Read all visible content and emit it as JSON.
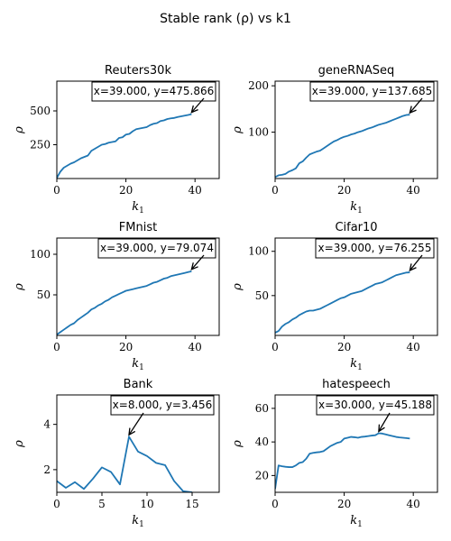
{
  "figure": {
    "title": "Stable rank (ρ) vs k1"
  },
  "chart_data": [
    {
      "type": "line",
      "title": "Reuters30k",
      "xlabel": "k1",
      "ylabel": "ρ",
      "xlim": [
        0,
        47
      ],
      "ylim": [
        0,
        720
      ],
      "xticks": [
        0,
        20,
        40
      ],
      "yticks": [
        250,
        500
      ],
      "x": [
        0,
        1,
        2,
        3,
        4,
        5,
        6,
        7,
        8,
        9,
        10,
        11,
        12,
        13,
        14,
        15,
        16,
        17,
        18,
        19,
        20,
        21,
        22,
        23,
        24,
        25,
        26,
        27,
        28,
        29,
        30,
        31,
        32,
        33,
        34,
        35,
        36,
        37,
        38,
        39
      ],
      "series": [
        {
          "values": [
            5,
            50,
            80,
            95,
            110,
            120,
            135,
            150,
            160,
            170,
            205,
            220,
            235,
            250,
            255,
            265,
            270,
            275,
            300,
            305,
            325,
            330,
            350,
            365,
            370,
            375,
            380,
            395,
            405,
            410,
            425,
            430,
            440,
            445,
            448,
            455,
            460,
            465,
            470,
            475.866
          ]
        }
      ],
      "annotation": {
        "text": "x=39.000, y=475.866",
        "x": 39,
        "y": 475.866
      },
      "color": "#1f77b4"
    },
    {
      "type": "line",
      "title": "geneRNASeq",
      "xlabel": "k1",
      "ylabel": "ρ",
      "xlim": [
        0,
        47
      ],
      "ylim": [
        0,
        210
      ],
      "xticks": [
        0,
        20,
        40
      ],
      "yticks": [
        100,
        200
      ],
      "x": [
        0,
        1,
        2,
        3,
        4,
        5,
        6,
        7,
        8,
        9,
        10,
        11,
        12,
        13,
        14,
        15,
        16,
        17,
        18,
        19,
        20,
        21,
        22,
        23,
        24,
        25,
        26,
        27,
        28,
        29,
        30,
        31,
        32,
        33,
        34,
        35,
        36,
        37,
        38,
        39
      ],
      "series": [
        {
          "values": [
            3,
            7,
            8,
            10,
            15,
            18,
            22,
            33,
            37,
            45,
            52,
            55,
            58,
            60,
            65,
            70,
            75,
            80,
            83,
            87,
            90,
            92,
            95,
            97,
            100,
            102,
            105,
            108,
            110,
            113,
            116,
            118,
            120,
            123,
            126,
            129,
            132,
            135,
            137,
            137.685
          ]
        }
      ],
      "annotation": {
        "text": "x=39.000, y=137.685",
        "x": 39,
        "y": 137.685
      },
      "color": "#1f77b4"
    },
    {
      "type": "line",
      "title": "FMnist",
      "xlabel": "k1",
      "ylabel": "ρ",
      "xlim": [
        0,
        47
      ],
      "ylim": [
        0,
        120
      ],
      "xticks": [
        0,
        20,
        40
      ],
      "yticks": [
        50,
        100
      ],
      "x": [
        0,
        1,
        2,
        3,
        4,
        5,
        6,
        7,
        8,
        9,
        10,
        11,
        12,
        13,
        14,
        15,
        16,
        17,
        18,
        19,
        20,
        21,
        22,
        23,
        24,
        25,
        26,
        27,
        28,
        29,
        30,
        31,
        32,
        33,
        34,
        35,
        36,
        37,
        38,
        39
      ],
      "series": [
        {
          "values": [
            1,
            4,
            7,
            10,
            13,
            15,
            19,
            22,
            25,
            28,
            32,
            34,
            37,
            39,
            42,
            44,
            47,
            49,
            51,
            53,
            55,
            56,
            57,
            58,
            59,
            60,
            61,
            63,
            65,
            66,
            68,
            70,
            71,
            73,
            74,
            75,
            76,
            77,
            78,
            79.074
          ]
        }
      ],
      "annotation": {
        "text": "x=39.000, y=79.074",
        "x": 39,
        "y": 79.074
      },
      "color": "#1f77b4"
    },
    {
      "type": "line",
      "title": "Cifar10",
      "xlabel": "k1",
      "ylabel": "ρ",
      "xlim": [
        0,
        47
      ],
      "ylim": [
        5,
        115
      ],
      "xticks": [
        0,
        20,
        40
      ],
      "yticks": [
        50,
        100
      ],
      "x": [
        0,
        1,
        2,
        3,
        4,
        5,
        6,
        7,
        8,
        9,
        10,
        11,
        12,
        13,
        14,
        15,
        16,
        17,
        18,
        19,
        20,
        21,
        22,
        23,
        24,
        25,
        26,
        27,
        28,
        29,
        30,
        31,
        32,
        33,
        34,
        35,
        36,
        37,
        38,
        39
      ],
      "series": [
        {
          "values": [
            8,
            10,
            15,
            18,
            20,
            23,
            25,
            28,
            30,
            32,
            33,
            33,
            34,
            35,
            37,
            39,
            41,
            43,
            45,
            47,
            48,
            50,
            52,
            53,
            54,
            55,
            57,
            59,
            61,
            63,
            64,
            65,
            67,
            69,
            71,
            73,
            74,
            75,
            76,
            76.255
          ]
        }
      ],
      "annotation": {
        "text": "x=39.000, y=76.255",
        "x": 39,
        "y": 76.255
      },
      "color": "#1f77b4"
    },
    {
      "type": "line",
      "title": "Bank",
      "xlabel": "k1",
      "ylabel": "ρ",
      "xlim": [
        0,
        18
      ],
      "ylim": [
        1.0,
        5.3
      ],
      "xticks": [
        0,
        5,
        10,
        15
      ],
      "yticks": [
        2,
        4
      ],
      "x": [
        0,
        1,
        2,
        3,
        4,
        5,
        6,
        7,
        8,
        9,
        10,
        11,
        12,
        13,
        14,
        15
      ],
      "series": [
        {
          "values": [
            1.5,
            1.2,
            1.45,
            1.15,
            1.6,
            2.1,
            1.9,
            1.35,
            3.456,
            2.8,
            2.6,
            2.3,
            2.2,
            1.5,
            1.05,
            1.0
          ]
        }
      ],
      "annotation": {
        "text": "x=8.000, y=3.456",
        "x": 8,
        "y": 3.456
      },
      "color": "#1f77b4"
    },
    {
      "type": "line",
      "title": "hatespeech",
      "xlabel": "k1",
      "ylabel": "ρ",
      "xlim": [
        0,
        47
      ],
      "ylim": [
        10,
        68
      ],
      "xticks": [
        0,
        20,
        40
      ],
      "yticks": [
        20,
        40,
        60
      ],
      "x": [
        0,
        1,
        2,
        3,
        4,
        5,
        6,
        7,
        8,
        9,
        10,
        11,
        12,
        13,
        14,
        15,
        16,
        17,
        18,
        19,
        20,
        21,
        22,
        23,
        24,
        25,
        26,
        27,
        28,
        29,
        30,
        31,
        32,
        33,
        34,
        35,
        36,
        37,
        38,
        39
      ],
      "series": [
        {
          "values": [
            12,
            26,
            25.5,
            25.2,
            25,
            25,
            26,
            27.5,
            28,
            30,
            33,
            33.5,
            33.8,
            34,
            34.5,
            36,
            37.5,
            38.5,
            39.5,
            40,
            42,
            42.5,
            43,
            42.8,
            42.5,
            43,
            43.2,
            43.5,
            43.8,
            44,
            45.188,
            45,
            44.5,
            44,
            43.5,
            43,
            42.7,
            42.5,
            42.3,
            42
          ]
        }
      ],
      "annotation": {
        "text": "x=30.000, y=45.188",
        "x": 30,
        "y": 45.188
      },
      "color": "#1f77b4"
    }
  ]
}
